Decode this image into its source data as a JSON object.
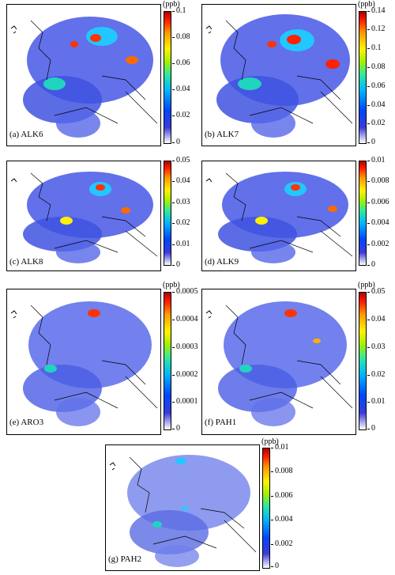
{
  "unit": "(ppb)",
  "panels": [
    {
      "label": "(a) ALK6",
      "ticks": [
        "0.1",
        "0.08",
        "0.06",
        "0.04",
        "0.02",
        "0"
      ]
    },
    {
      "label": "(b) ALK7",
      "ticks": [
        "0.14",
        "0.12",
        "0.1",
        "0.08",
        "0.06",
        "0.04",
        "0.02",
        "0"
      ]
    },
    {
      "label": "(c) ALK8",
      "ticks": [
        "0.05",
        "0.04",
        "0.03",
        "0.02",
        "0.01",
        "0"
      ]
    },
    {
      "label": "(d) ALK9",
      "ticks": [
        "0.01",
        "0.008",
        "0.006",
        "0.004",
        "0.002",
        "0"
      ]
    },
    {
      "label": "(e) ARO3",
      "ticks": [
        "0.0005",
        "0.0004",
        "0.0003",
        "0.0002",
        "0.0001",
        "0"
      ]
    },
    {
      "label": "(f) PAH1",
      "ticks": [
        "0.05",
        "0.04",
        "0.03",
        "0.02",
        "0.01",
        "0"
      ]
    },
    {
      "label": "(g) PAH2",
      "ticks": [
        "0.01",
        "0.008",
        "0.006",
        "0.004",
        "0.002",
        "0"
      ]
    }
  ],
  "colors": {
    "low": "#ffffff",
    "mid": "#00b4ff",
    "high": "#b00000",
    "plume": "#3a4fe0"
  }
}
